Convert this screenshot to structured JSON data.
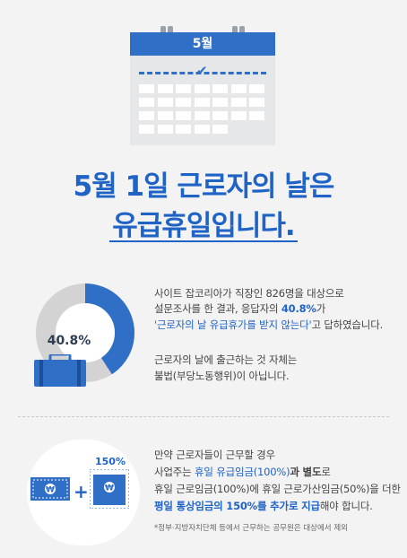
{
  "calendar": {
    "month_label": "5월"
  },
  "headline": {
    "line1": "5월 1일 근로자의 날은",
    "line2": "유급휴일입니다."
  },
  "stat": {
    "percent_label": "40.8%",
    "percent_value": 40.8,
    "colors": {
      "accent": "#2f6fc6",
      "track": "#d3d3d3"
    }
  },
  "section1": {
    "line1": "사이트 잡코리아가 직장인 826명을 대상으로",
    "line2_pre": "설문조사를 한 결과, 응답자의 ",
    "line2_bold": "40.8%",
    "line2_post": "가",
    "line3_quote": "'근로자의 날 유급휴가를 받지 않는다'",
    "line3_post": "고 답하였습니다.",
    "line4": "근로자의 날에 출근하는 것 자체는",
    "line5": "불법(부당노동행위)이 아닙니다."
  },
  "section2": {
    "badge_150": "150%",
    "line1": "만약 근로자들이 근무할 경우",
    "line2_pre": "사업주는 ",
    "line2_blue": "휴일 유급임금(100%)",
    "line2_bold": "과 별도",
    "line2_post": "로",
    "line3": "휴일 근로임금(100%)에 휴일 근로가산임금(50%)을 더한",
    "line4_blue": "평일 통상임금의 150%를 추가로 지급",
    "line4_post": "해야 합니다.",
    "footnote": "*정부·지방자치단체 등에서 근무하는 공무원은 대상에서 제외"
  }
}
